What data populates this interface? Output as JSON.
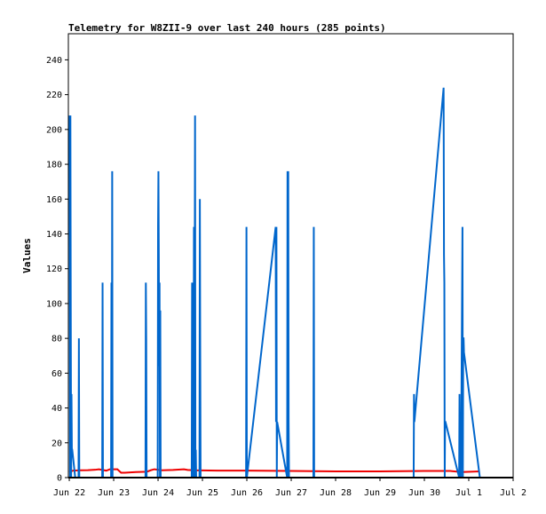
{
  "chart_data": {
    "type": "line",
    "title": "Telemetry for W8ZII-9 over last 240 hours (285 points)",
    "xlabel": "",
    "ylabel": "Values",
    "grid": false,
    "legend": "none",
    "x_unit": "hours from Jun 22 00:00",
    "xlim": [
      -0.5,
      240
    ],
    "ylim": [
      0,
      255
    ],
    "x_ticks": [
      {
        "x": 0,
        "label": "Jun 22"
      },
      {
        "x": 24,
        "label": "Jun 23"
      },
      {
        "x": 48,
        "label": "Jun 24"
      },
      {
        "x": 72,
        "label": "Jun 25"
      },
      {
        "x": 96,
        "label": "Jun 26"
      },
      {
        "x": 120,
        "label": "Jun 27"
      },
      {
        "x": 144,
        "label": "Jun 28"
      },
      {
        "x": 168,
        "label": "Jun 29"
      },
      {
        "x": 192,
        "label": "Jun 30"
      },
      {
        "x": 216,
        "label": "Jul 1"
      },
      {
        "x": 240,
        "label": "Jul 2"
      }
    ],
    "y_ticks": [
      0,
      20,
      40,
      60,
      80,
      100,
      120,
      140,
      160,
      180,
      200,
      220,
      240
    ],
    "series": [
      {
        "color": "#0066cc",
        "x": [
          0.2,
          0.4,
          0.6,
          0.8,
          1.0,
          1.2,
          1.4,
          1.6,
          3.2,
          5.0,
          5.2,
          5.4,
          17.8,
          18.0,
          18.2,
          18.4,
          22.6,
          22.8,
          23.0,
          23.2,
          23.4,
          41.2,
          41.4,
          41.6,
          41.8,
          47.8,
          48.0,
          48.2,
          48.4,
          48.6,
          48.8,
          49.0,
          49.2,
          49.4,
          49.6,
          66.2,
          66.4,
          66.6,
          66.8,
          67.2,
          67.4,
          67.6,
          68.0,
          68.2,
          68.4,
          68.6,
          70.4,
          70.6,
          70.8,
          71.0,
          95.6,
          95.8,
          96.0,
          111.6,
          111.8,
          112.0,
          112.2,
          112.4,
          117.8,
          118.0,
          118.2,
          118.4,
          118.6,
          118.8,
          132.0,
          132.2,
          132.4,
          186.2,
          186.4,
          186.6,
          202.4,
          202.6,
          202.8,
          203.0,
          203.2,
          203.4,
          210.8,
          211.0,
          211.2,
          211.4,
          211.6,
          211.8,
          212.6,
          212.8,
          213.0,
          213.2,
          213.4,
          222.0
        ],
        "values": [
          208,
          0,
          208,
          96,
          0,
          48,
          16,
          16,
          0,
          0,
          80,
          0,
          0,
          112,
          0,
          0,
          0,
          112,
          0,
          176,
          0,
          0,
          112,
          80,
          0,
          0,
          144,
          176,
          128,
          64,
          112,
          0,
          96,
          0,
          0,
          0,
          112,
          56,
          0,
          0,
          144,
          0,
          208,
          0,
          16,
          0,
          0,
          160,
          72,
          0,
          0,
          144,
          0,
          144,
          32,
          144,
          0,
          32,
          0,
          176,
          0,
          176,
          32,
          0,
          0,
          144,
          0,
          0,
          48,
          32,
          224,
          128,
          112,
          0,
          32,
          32,
          0,
          48,
          0,
          32,
          0,
          0,
          144,
          0,
          80,
          80,
          72,
          0
        ]
      },
      {
        "color": "#ee0000",
        "x": [
          0,
          2,
          6,
          10,
          14,
          16,
          18,
          20,
          22,
          26,
          28,
          30,
          36,
          42,
          44,
          46,
          50,
          56,
          62,
          64,
          68,
          80,
          96,
          120,
          144,
          168,
          192,
          206,
          212,
          222
        ],
        "values": [
          3.2,
          4.0,
          4.2,
          4.3,
          4.5,
          4.8,
          4.4,
          4.0,
          4.8,
          4.8,
          2.8,
          2.8,
          3.2,
          3.4,
          4.2,
          4.8,
          4.2,
          4.4,
          4.8,
          4.4,
          4.2,
          4.0,
          4.0,
          3.8,
          3.6,
          3.6,
          3.8,
          3.8,
          3.2,
          3.6
        ]
      }
    ]
  }
}
